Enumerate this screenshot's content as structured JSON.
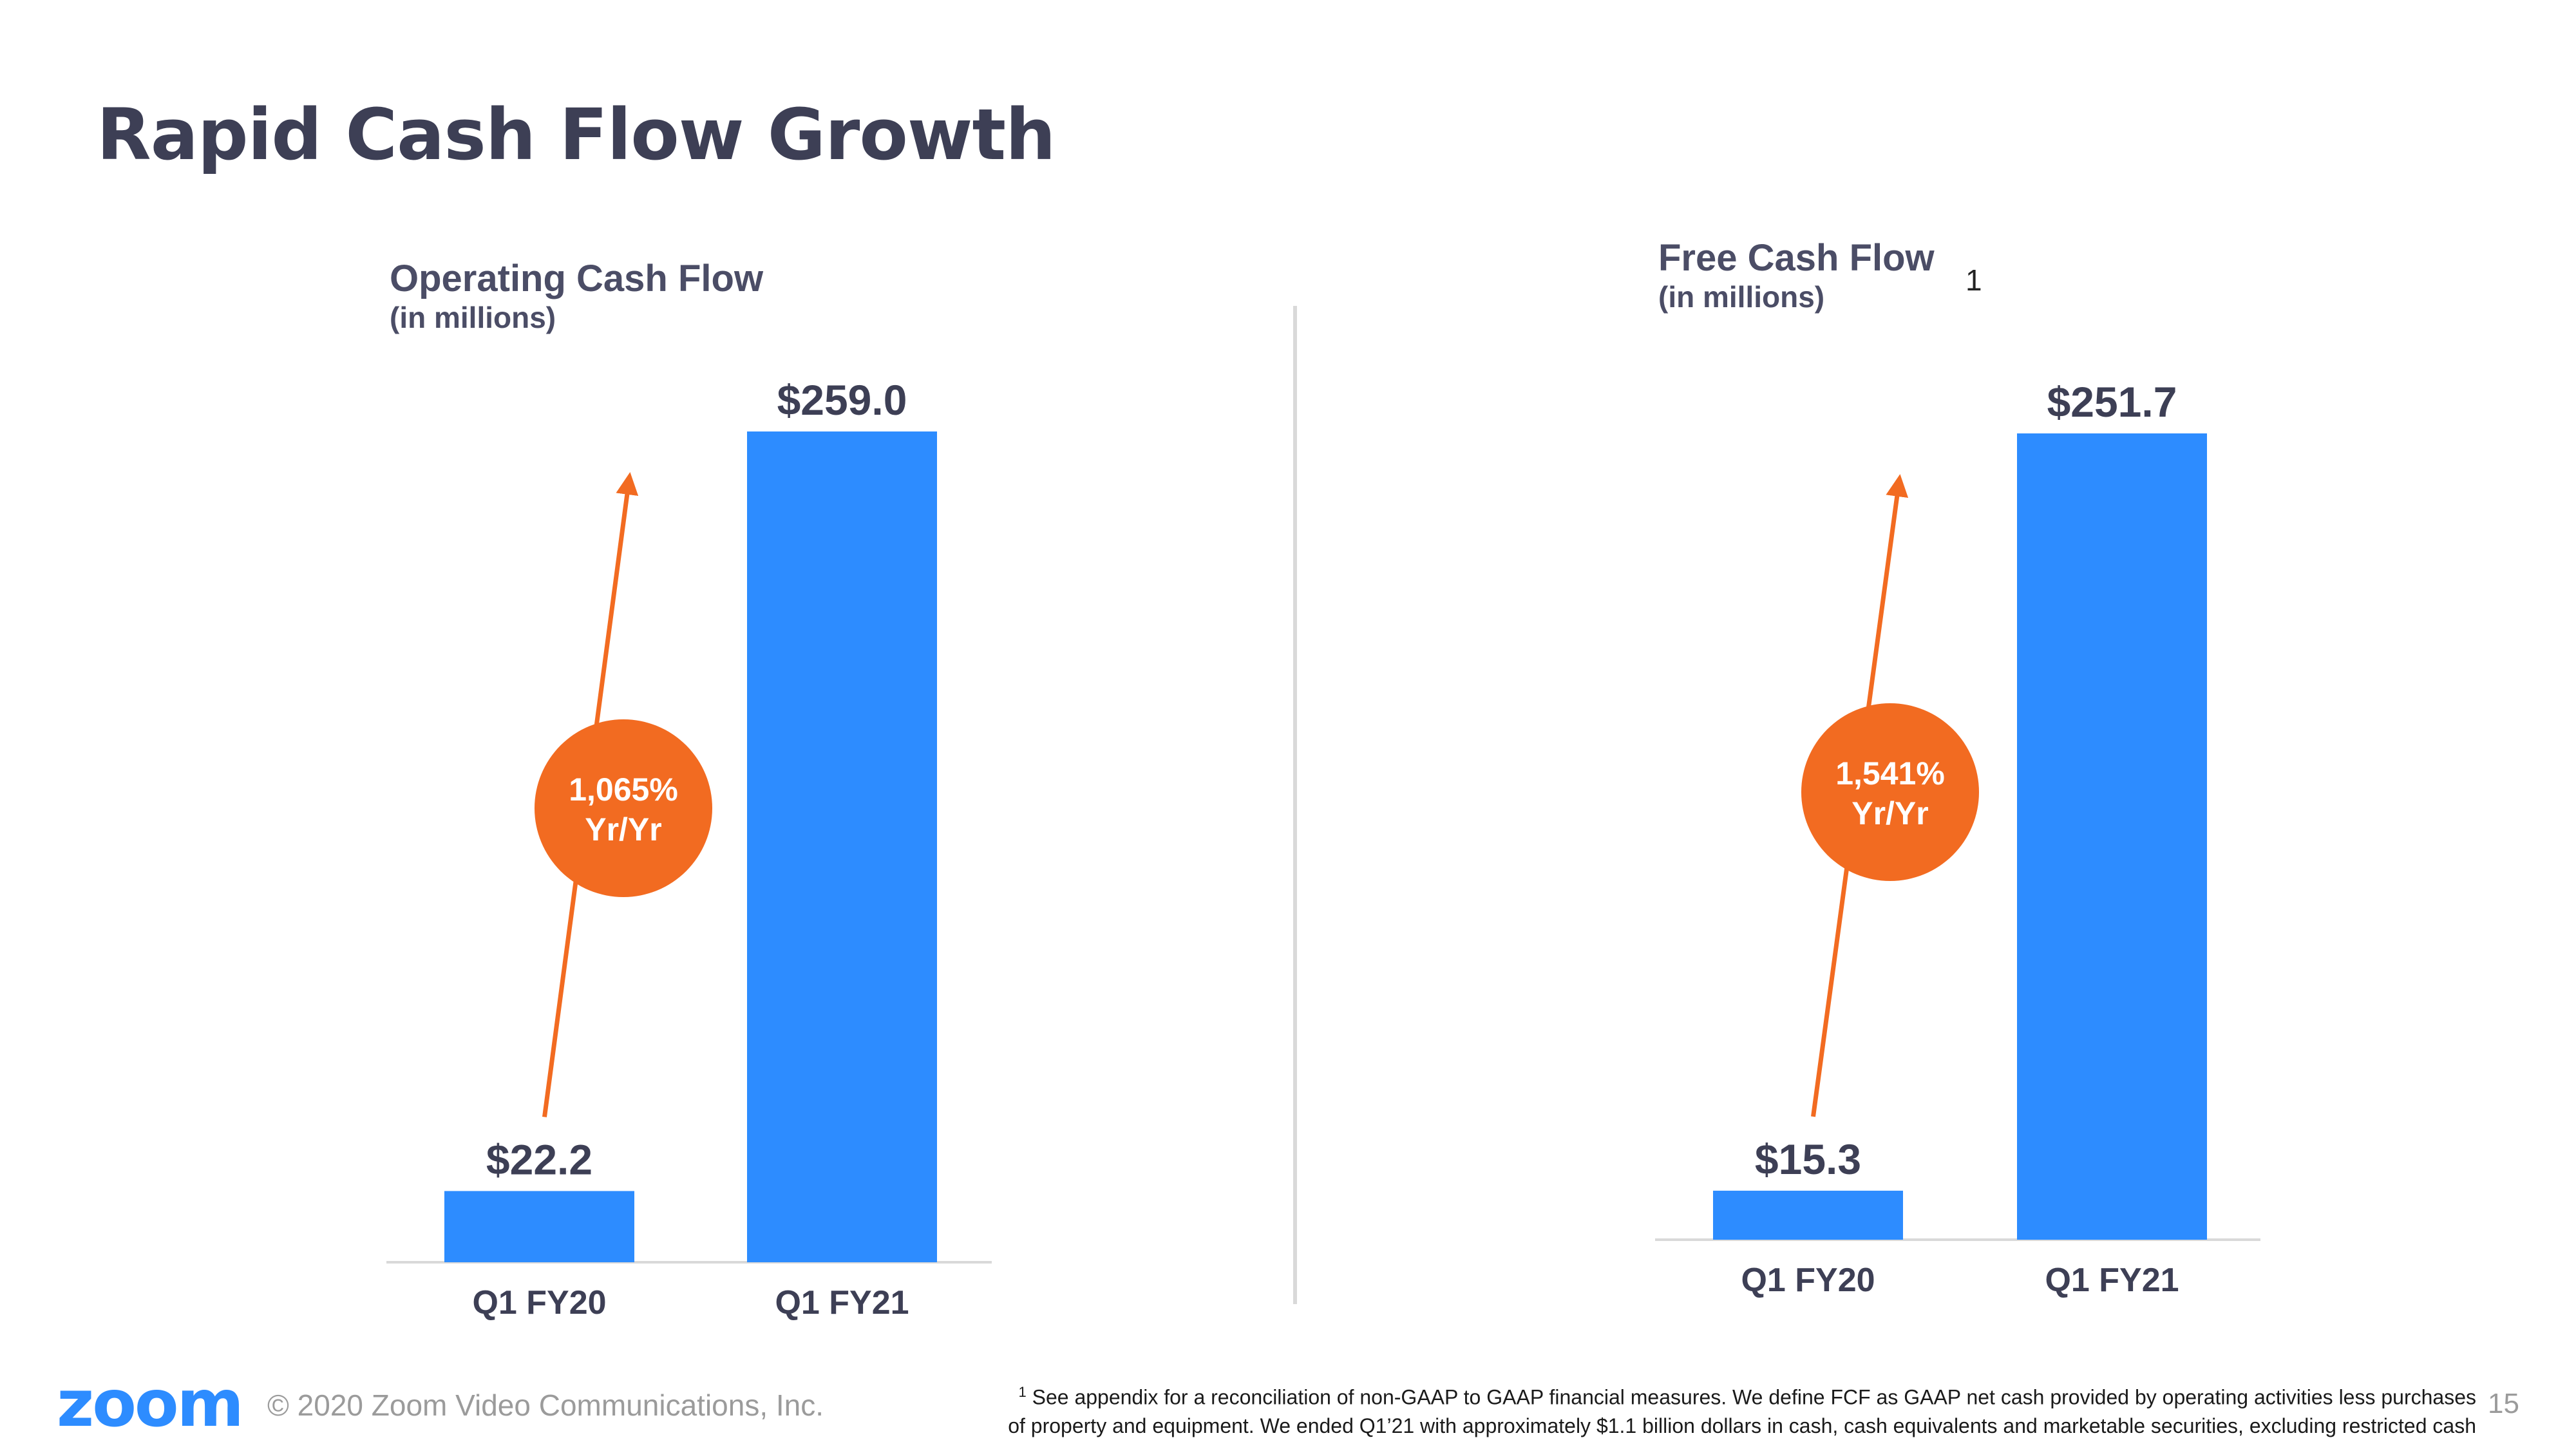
{
  "slide": {
    "title": "Rapid Cash Flow Growth",
    "page_number": "15"
  },
  "colors": {
    "bar": "#2d8cff",
    "accent": "#f26b21",
    "text": "#3d3f55",
    "divider": "#d9d9d9"
  },
  "footer": {
    "logo_text": "zoom",
    "copyright": "© 2020 Zoom Video Communications, Inc.",
    "footnote_marker": "1",
    "footnote_line1": "See appendix for a reconciliation of non-GAAP to GAAP financial measures. We define FCF as GAAP net cash provided by operating activities less purchases",
    "footnote_line2": "of property and equipment. We ended Q1’21 with approximately $1.1 billion dollars in cash, cash equivalents and marketable securities, excluding restricted cash"
  },
  "chart_data": [
    {
      "type": "bar",
      "title": "Operating Cash Flow",
      "subtitle": "(in millions)",
      "footnote_ref": "",
      "categories": [
        "Q1 FY20",
        "Q1 FY21"
      ],
      "values": [
        22.2,
        259.0
      ],
      "value_labels": [
        "$22.2",
        "$259.0"
      ],
      "ylim": [
        0,
        259.0
      ],
      "growth_label_line1": "1,065%",
      "growth_label_line2": "Yr/Yr",
      "xlabel": "",
      "ylabel": ""
    },
    {
      "type": "bar",
      "title": "Free Cash Flow",
      "subtitle": "(in millions)",
      "footnote_ref": "1",
      "categories": [
        "Q1 FY20",
        "Q1 FY21"
      ],
      "values": [
        15.3,
        251.7
      ],
      "value_labels": [
        "$15.3",
        "$251.7"
      ],
      "ylim": [
        0,
        251.7
      ],
      "growth_label_line1": "1,541%",
      "growth_label_line2": "Yr/Yr",
      "xlabel": "",
      "ylabel": ""
    }
  ]
}
